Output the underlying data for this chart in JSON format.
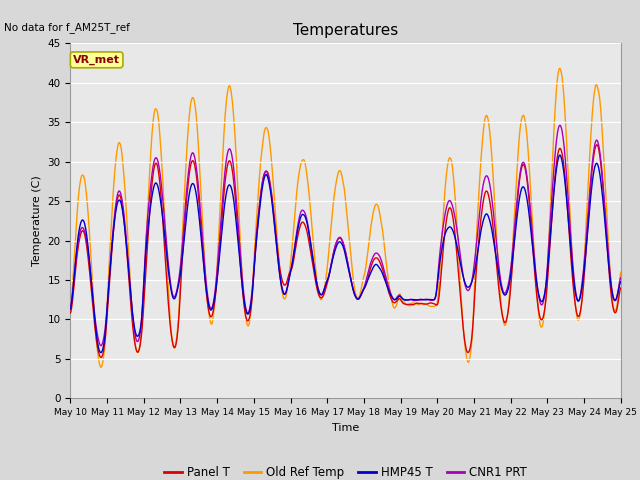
{
  "title": "Temperatures",
  "xlabel": "Time",
  "ylabel": "Temperature (C)",
  "no_data_text": "No data for f_AM25T_ref",
  "vr_met_label": "VR_met",
  "ylim": [
    0,
    45
  ],
  "series_colors": {
    "Panel T": "#dd0000",
    "Old Ref Temp": "#ff9900",
    "HMP45 T": "#0000cc",
    "CNR1 PRT": "#aa00bb"
  },
  "fig_facecolor": "#d8d8d8",
  "ax_facecolor": "#e8e8e8",
  "legend_labels": [
    "Panel T",
    "Old Ref Temp",
    "HMP45 T",
    "CNR1 PRT"
  ],
  "x_tick_labels": [
    "May 10",
    "May 11",
    "May 12",
    "May 13",
    "May 14",
    "May 15",
    "May 16",
    "May 17",
    "May 18",
    "May 19",
    "May 20",
    "May 21",
    "May 22",
    "May 23",
    "May 24",
    "May 25"
  ],
  "day_peaks_orange": [
    28.5,
    32.5,
    37.0,
    38.5,
    39.8,
    34.5,
    30.5,
    29.0,
    24.5,
    12.0,
    30.8,
    36.0,
    36.0,
    42.0,
    40.0,
    12.0
  ],
  "day_peaks_red": [
    21.5,
    26.0,
    30.2,
    30.5,
    30.5,
    29.2,
    22.5,
    20.5,
    18.0,
    12.0,
    24.5,
    26.5,
    30.0,
    32.0,
    32.5,
    12.0
  ],
  "day_peaks_blue": [
    23.0,
    25.5,
    27.5,
    27.5,
    27.5,
    28.5,
    23.5,
    20.0,
    17.0,
    12.5,
    22.0,
    23.5,
    27.0,
    31.0,
    30.0,
    12.0
  ],
  "day_peaks_purple": [
    22.0,
    26.5,
    30.8,
    31.5,
    32.0,
    29.0,
    24.0,
    20.5,
    18.5,
    12.5,
    25.2,
    28.5,
    30.2,
    35.0,
    33.0,
    12.0
  ],
  "day_troughs_orange": [
    3.8,
    5.5,
    6.2,
    9.2,
    9.0,
    12.5,
    12.5,
    12.5,
    11.5,
    11.8,
    4.5,
    9.0,
    9.0,
    9.5,
    11.0,
    11.0
  ],
  "day_troughs_red": [
    5.0,
    5.5,
    6.0,
    10.0,
    9.5,
    14.0,
    12.5,
    12.5,
    12.0,
    12.0,
    5.5,
    9.5,
    9.5,
    10.0,
    10.5,
    11.5
  ],
  "day_troughs_blue": [
    5.5,
    7.5,
    12.5,
    11.0,
    10.5,
    13.0,
    13.0,
    12.5,
    12.5,
    12.5,
    14.0,
    13.0,
    12.0,
    12.0,
    12.0,
    12.0
  ],
  "day_troughs_purple": [
    6.5,
    7.0,
    12.5,
    11.0,
    10.5,
    13.0,
    13.0,
    12.5,
    12.5,
    12.5,
    13.5,
    13.0,
    11.5,
    12.0,
    12.0,
    12.0
  ]
}
